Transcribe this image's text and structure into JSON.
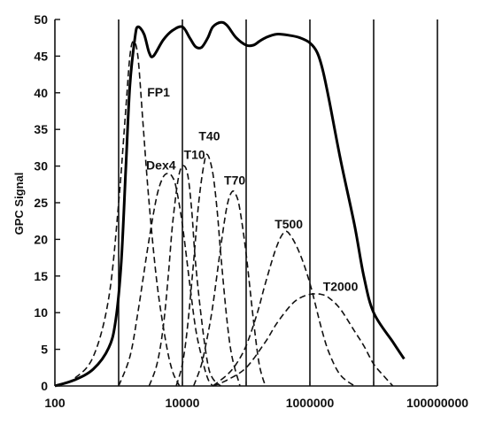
{
  "chart_data": {
    "type": "line",
    "title": "",
    "xlabel": "",
    "ylabel": "GPC Signal",
    "xscale": "log",
    "xlim": [
      100,
      100000000
    ],
    "ylim": [
      0,
      50
    ],
    "x_tick_labels": [
      "100",
      "10000",
      "1000000",
      "100000000"
    ],
    "y_tick_labels": [
      "0",
      "5",
      "10",
      "15",
      "20",
      "25",
      "30",
      "35",
      "40",
      "45",
      "50"
    ],
    "vertical_gridlines_at": [
      1000,
      10000,
      100000,
      1000000,
      10000000,
      100000000
    ],
    "grid": "vertical",
    "legend": "none",
    "overall_trace": {
      "style": "solid",
      "x": [
        100,
        200,
        400,
        700,
        900,
        1100,
        1300,
        1500,
        1800,
        2000,
        2500,
        3000,
        3500,
        5000,
        7000,
        10000,
        13000,
        16000,
        20000,
        25000,
        30000,
        40000,
        50000,
        70000,
        100000,
        130000,
        160000,
        200000,
        300000,
        500000,
        700000,
        1000000,
        1300000,
        1600000,
        2000000,
        3000000,
        5000000,
        7000000,
        10000000,
        20000000,
        30000000
      ],
      "y": [
        0,
        0.8,
        2.3,
        5.2,
        9,
        17,
        30,
        41,
        47.5,
        49,
        48,
        45.5,
        45,
        47.2,
        48.5,
        49,
        47.5,
        46.3,
        46.2,
        47.5,
        49,
        49.6,
        49.2,
        47.5,
        46.5,
        46.5,
        47,
        47.5,
        48,
        47.8,
        47.5,
        46.8,
        45.5,
        43,
        39,
        31,
        22,
        15,
        10,
        6,
        3.7
      ]
    },
    "series": [
      {
        "name": "FP1",
        "style": "dashed",
        "x": [
          110,
          200,
          400,
          700,
          1000,
          1300,
          1500,
          1700,
          2000,
          2400,
          3000,
          4000,
          5500,
          7000,
          9000
        ],
        "y": [
          0,
          1,
          4,
          12,
          25,
          38,
          45,
          47,
          45,
          36,
          25,
          14,
          6,
          2,
          0
        ]
      },
      {
        "name": "Dex4",
        "style": "dashed",
        "x": [
          1000,
          1500,
          2000,
          3000,
          4000,
          5000,
          6000,
          7000,
          8000,
          10000,
          13000,
          16000,
          20000,
          25000,
          30000
        ],
        "y": [
          0,
          4,
          10,
          20,
          26,
          28.5,
          29,
          28.5,
          27,
          22,
          14,
          8,
          4,
          1,
          0
        ]
      },
      {
        "name": "T10",
        "style": "dashed",
        "x": [
          3000,
          4000,
          5000,
          6000,
          7000,
          8500,
          10000,
          12000,
          14000,
          16000,
          20000,
          25000,
          30000,
          40000
        ],
        "y": [
          0,
          3,
          8,
          15,
          22,
          28,
          30,
          29,
          24,
          17,
          9,
          3,
          1,
          0
        ]
      },
      {
        "name": "T40",
        "style": "dashed",
        "x": [
          8000,
          10000,
          12000,
          15000,
          18000,
          22000,
          25000,
          30000,
          35000,
          40000,
          50000,
          60000,
          80000
        ],
        "y": [
          0,
          3,
          8,
          17,
          25,
          30.5,
          31.5,
          29,
          24,
          18,
          9,
          4,
          0
        ]
      },
      {
        "name": "T70",
        "style": "dashed",
        "x": [
          15000,
          20000,
          25000,
          30000,
          40000,
          50000,
          60000,
          70000,
          80000,
          100000,
          130000,
          160000,
          200000
        ],
        "y": [
          0,
          3,
          7,
          11,
          19,
          24.5,
          26.5,
          26,
          24,
          18,
          9,
          3,
          0
        ]
      },
      {
        "name": "T500",
        "style": "dashed",
        "x": [
          30000,
          50000,
          70000,
          100000,
          150000,
          200000,
          300000,
          400000,
          500000,
          700000,
          1000000,
          1500000,
          2000000,
          3000000,
          5000000
        ],
        "y": [
          0,
          1.5,
          3,
          5.5,
          10,
          14,
          19,
          21,
          20.5,
          18,
          14,
          8,
          4.5,
          1.5,
          0
        ]
      },
      {
        "name": "T2000",
        "style": "dashed",
        "x": [
          30000,
          50000,
          100000,
          200000,
          300000,
          500000,
          700000,
          1000000,
          1500000,
          2000000,
          3000000,
          5000000,
          7000000,
          10000000,
          15000000,
          20000000
        ],
        "y": [
          0,
          0.8,
          2.5,
          6,
          8.5,
          11,
          12,
          12.5,
          12.5,
          12,
          10.5,
          7.5,
          5.5,
          3,
          1.2,
          0
        ]
      }
    ],
    "curve_labels": [
      {
        "text": "FP1",
        "x": 2800,
        "y": 39.5
      },
      {
        "text": "Dex4",
        "x": 2700,
        "y": 29.5
      },
      {
        "text": "T10",
        "x": 10500,
        "y": 31
      },
      {
        "text": "T40",
        "x": 18000,
        "y": 33.5
      },
      {
        "text": "T70",
        "x": 45000,
        "y": 27.5
      },
      {
        "text": "T500",
        "x": 280000,
        "y": 21.5
      },
      {
        "text": "T2000",
        "x": 1600000,
        "y": 13
      }
    ]
  }
}
